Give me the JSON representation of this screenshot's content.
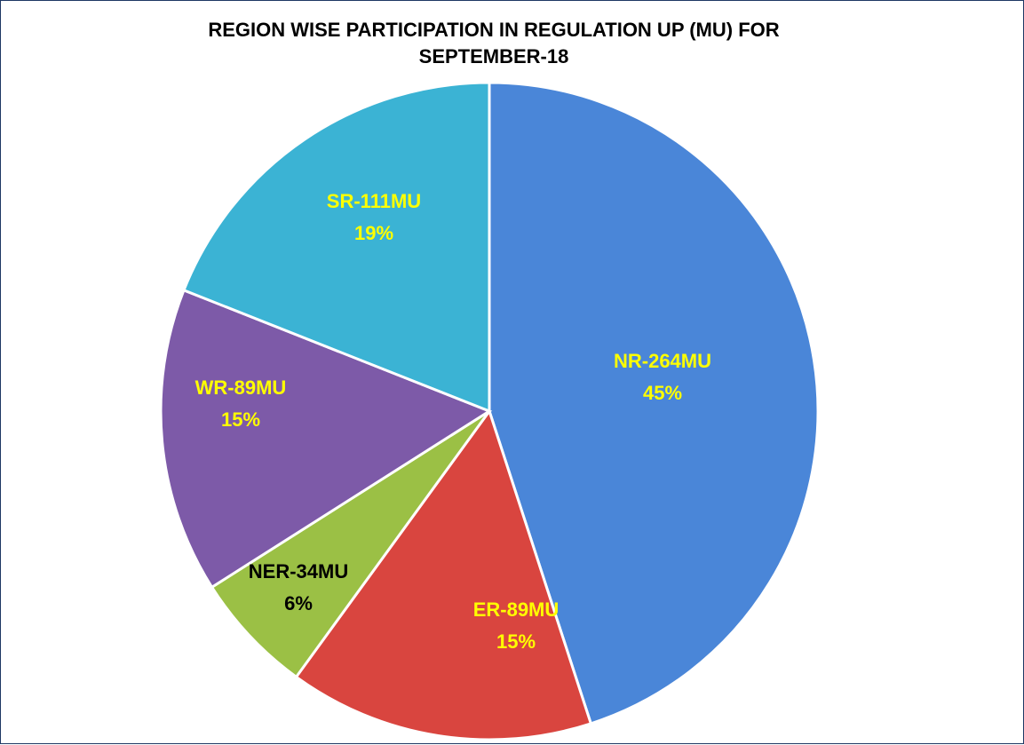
{
  "chart_data": {
    "type": "pie",
    "title": "REGION WISE PARTICIPATION IN REGULATION UP (MU) FOR SEPTEMBER-18",
    "categories": [
      "NR-264MU",
      "ER-89MU",
      "NER-34MU",
      "WR-89MU",
      "SR-111MU"
    ],
    "values": [
      45,
      15,
      6,
      15,
      19
    ],
    "value_labels": [
      "45%",
      "15%",
      "6%",
      "15%",
      "19%"
    ],
    "colors": [
      "#4a86d8",
      "#d9453f",
      "#9bc045",
      "#7d5aa8",
      "#3bb3d4"
    ],
    "label_colors": [
      "#ffff00",
      "#ffff00",
      "#000000",
      "#ffff00",
      "#ffff00"
    ]
  }
}
